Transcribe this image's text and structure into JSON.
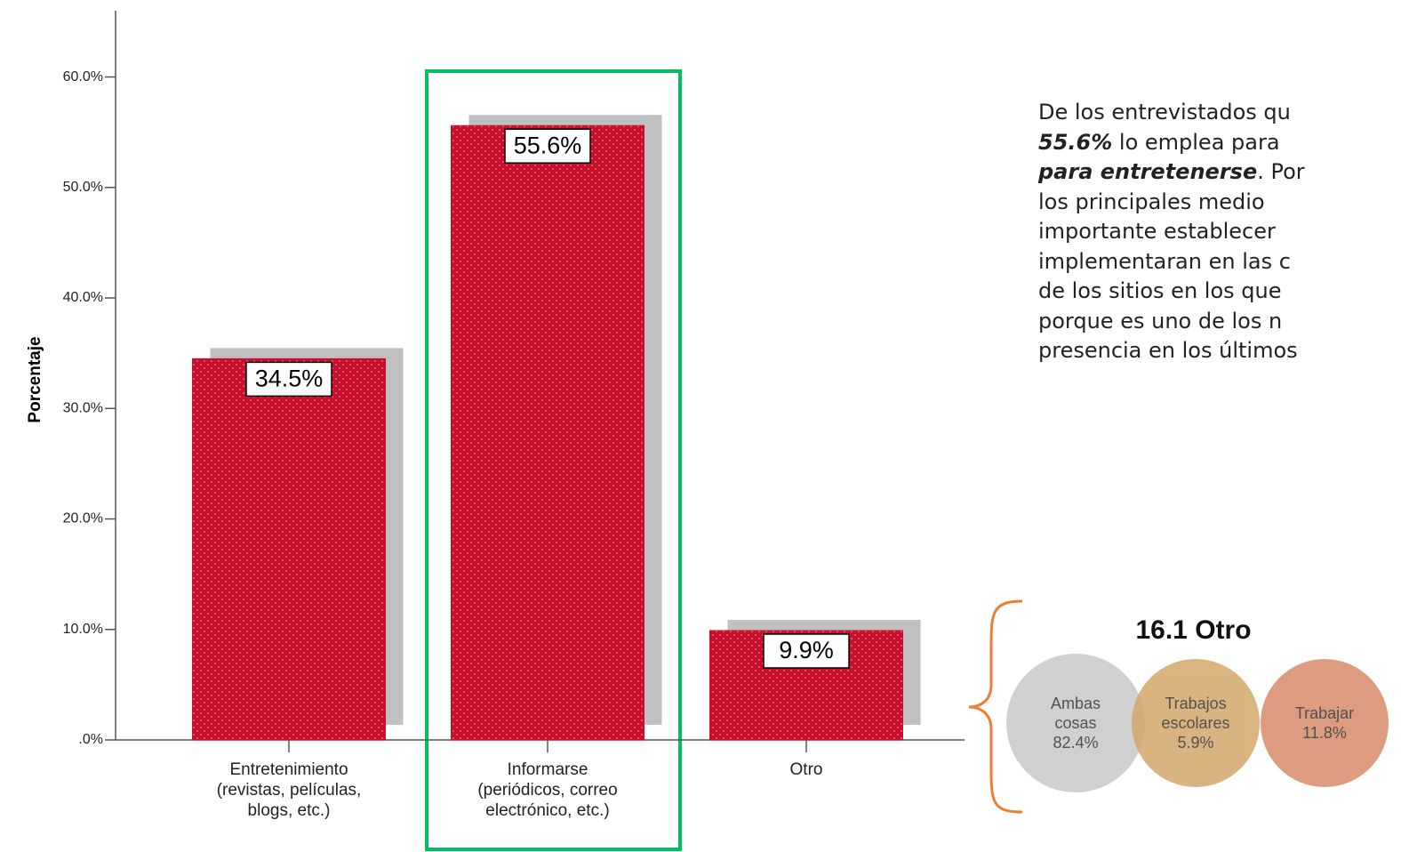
{
  "chart_data": [
    {
      "type": "bar",
      "y_label": "Porcentaje",
      "categories": [
        [
          "Entretenimiento",
          "(revistas, películas,",
          "blogs, etc.)"
        ],
        [
          "Informarse",
          "(periódicos, correo",
          "electrónico, etc.)"
        ],
        [
          "Otro"
        ]
      ],
      "values": [
        34.5,
        55.6,
        9.9
      ],
      "value_labels": [
        "34.5%",
        "55.6%",
        "9.9%"
      ],
      "color": "#c8102e",
      "shadow_color": "#c0c0c0",
      "ylim": [
        0,
        66
      ],
      "yticks": [
        {
          "value": 0,
          "label": ".0%"
        },
        {
          "value": 10,
          "label": "10.0%"
        },
        {
          "value": 20,
          "label": "20.0%"
        },
        {
          "value": 30,
          "label": "30.0%"
        },
        {
          "value": 40,
          "label": "40.0%"
        },
        {
          "value": 50,
          "label": "50.0%"
        },
        {
          "value": 60,
          "label": "60.0%"
        }
      ]
    },
    {
      "type": "venn",
      "title": "16.1 Otro",
      "categories": [
        "Ambas cosas",
        "Trabajos escolares",
        "Trabajar"
      ],
      "values": [
        82.4,
        5.9,
        11.8
      ],
      "value_labels": [
        "82.4%",
        "5.9%",
        "11.8%"
      ],
      "colors": [
        "#c8c8c8",
        "#d4a86a",
        "#d88a6a"
      ]
    }
  ],
  "text": {
    "lines": [
      [
        {
          "t": "De los entrevistados qu"
        }
      ],
      [
        {
          "t": "55.6%",
          "b": true
        },
        {
          "t": " lo emplea para "
        }
      ],
      [
        {
          "t": "para entretenerse",
          "b": true
        },
        {
          "t": ". Por"
        }
      ],
      [
        {
          "t": "los principales medio"
        }
      ],
      [
        {
          "t": "importante establecer"
        }
      ],
      [
        {
          "t": "implementaran en las c"
        }
      ],
      [
        {
          "t": "de los sitios en los que"
        }
      ],
      [
        {
          "t": "porque es uno de los n"
        }
      ],
      [
        {
          "t": "presencia en los últimos"
        }
      ]
    ]
  }
}
